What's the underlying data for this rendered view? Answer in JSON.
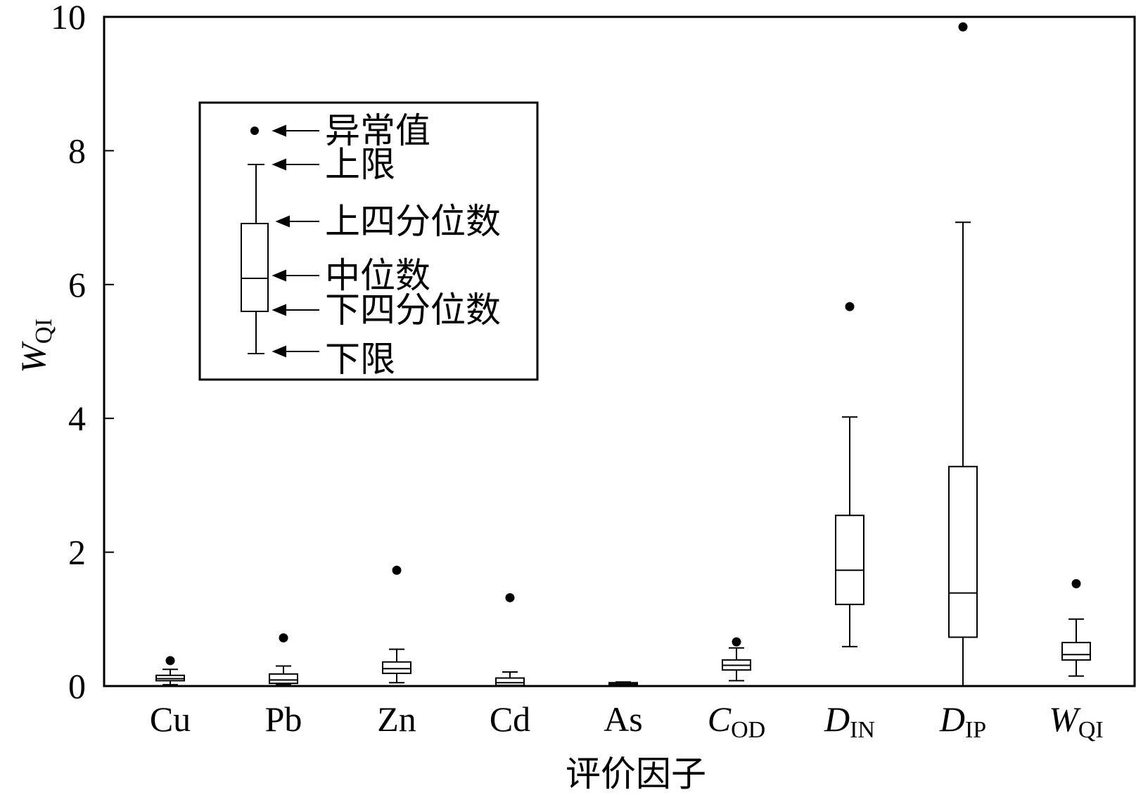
{
  "chart_data": {
    "type": "box",
    "xlabel": "评价因子",
    "ylabel": "W",
    "ylabel_sub": "QI",
    "ylim": [
      0,
      10
    ],
    "yticks": [
      "0",
      "2",
      "4",
      "6",
      "8",
      "10"
    ],
    "categories": [
      {
        "main": "Cu",
        "sub": "",
        "italic": false
      },
      {
        "main": "Pb",
        "sub": "",
        "italic": false
      },
      {
        "main": "Zn",
        "sub": "",
        "italic": false
      },
      {
        "main": "Cd",
        "sub": "",
        "italic": false
      },
      {
        "main": "As",
        "sub": "",
        "italic": false
      },
      {
        "main": "C",
        "sub": "OD",
        "italic": true
      },
      {
        "main": "D",
        "sub": "IN",
        "italic": true
      },
      {
        "main": "D",
        "sub": "IP",
        "italic": true
      },
      {
        "main": "W",
        "sub": "QI",
        "italic": true
      }
    ],
    "boxes": [
      {
        "min": 0.02,
        "q1": 0.08,
        "median": 0.11,
        "q3": 0.16,
        "max": 0.25,
        "outliers": [
          0.38
        ]
      },
      {
        "min": 0.02,
        "q1": 0.04,
        "median": 0.09,
        "q3": 0.18,
        "max": 0.3,
        "outliers": [
          0.72
        ]
      },
      {
        "min": 0.05,
        "q1": 0.19,
        "median": 0.26,
        "q3": 0.36,
        "max": 0.55,
        "outliers": [
          1.73
        ]
      },
      {
        "min": 0.0,
        "q1": 0.01,
        "median": 0.05,
        "q3": 0.12,
        "max": 0.21,
        "outliers": [
          1.32
        ]
      },
      {
        "min": 0.0,
        "q1": 0.01,
        "median": 0.03,
        "q3": 0.05,
        "max": 0.06,
        "outliers": []
      },
      {
        "min": 0.08,
        "q1": 0.24,
        "median": 0.31,
        "q3": 0.39,
        "max": 0.57,
        "outliers": [
          0.66
        ]
      },
      {
        "min": 0.59,
        "q1": 1.22,
        "median": 1.73,
        "q3": 2.55,
        "max": 4.02,
        "outliers": [
          5.67
        ]
      },
      {
        "min": 0.0,
        "q1": 0.73,
        "median": 1.39,
        "q3": 3.28,
        "max": 6.93,
        "outliers": [
          9.85
        ]
      },
      {
        "min": 0.15,
        "q1": 0.39,
        "median": 0.47,
        "q3": 0.65,
        "max": 1.0,
        "outliers": [
          1.53
        ]
      }
    ],
    "legend": {
      "outlier": "异常值",
      "upper": "上限",
      "q3": "上四分位数",
      "median": "中位数",
      "q1": "下四分位数",
      "lower": "下限"
    },
    "grid": false
  }
}
